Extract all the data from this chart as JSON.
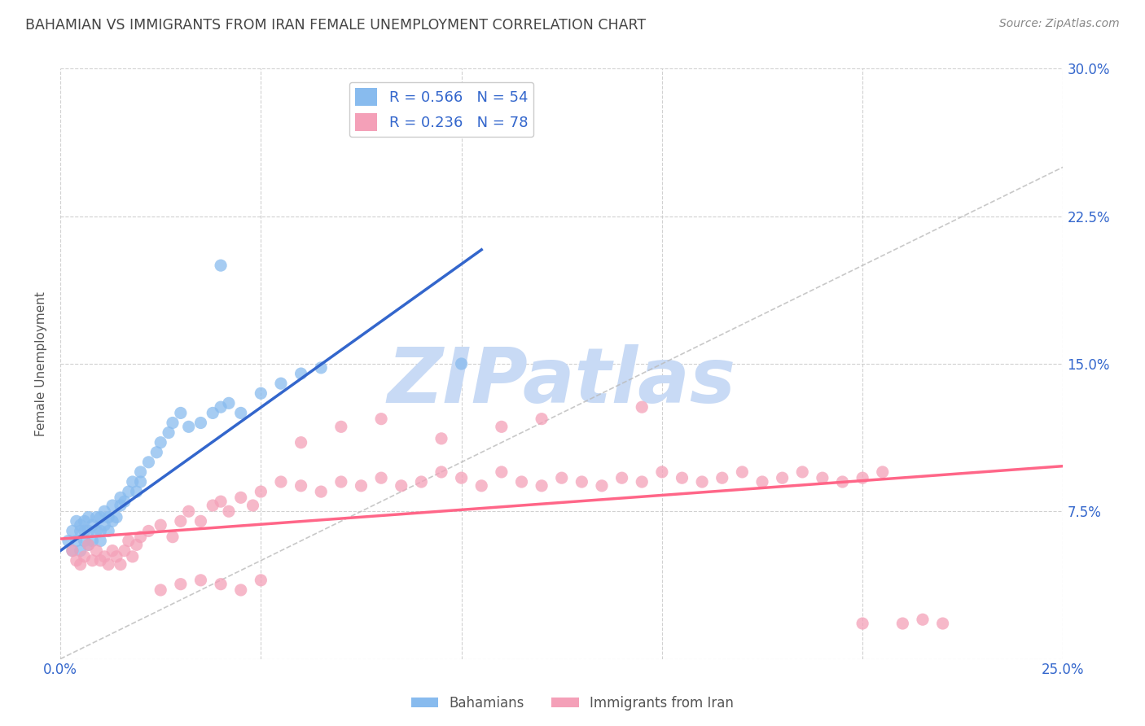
{
  "title": "BAHAMIAN VS IMMIGRANTS FROM IRAN FEMALE UNEMPLOYMENT CORRELATION CHART",
  "source": "Source: ZipAtlas.com",
  "ylabel": "Female Unemployment",
  "xlim": [
    0.0,
    0.25
  ],
  "ylim": [
    0.0,
    0.3
  ],
  "xticks": [
    0.0,
    0.05,
    0.1,
    0.15,
    0.2,
    0.25
  ],
  "yticks": [
    0.0,
    0.075,
    0.15,
    0.225,
    0.3
  ],
  "xticklabels": [
    "0.0%",
    "",
    "",
    "",
    "",
    "25.0%"
  ],
  "yticklabels_right": [
    "",
    "7.5%",
    "15.0%",
    "22.5%",
    "30.0%"
  ],
  "background_color": "#ffffff",
  "grid_color": "#cccccc",
  "title_color": "#444444",
  "watermark_text": "ZIPatlas",
  "watermark_color": "#c8daf5",
  "legend1_R": "0.566",
  "legend1_N": "54",
  "legend2_R": "0.236",
  "legend2_N": "78",
  "legend_color": "#3366cc",
  "blue_scatter_color": "#88bbee",
  "pink_scatter_color": "#f4a0b8",
  "trend_blue": "#3366cc",
  "trend_pink": "#ff6688",
  "trend_gray": "#bbbbbb",
  "bahamians_label": "Bahamians",
  "iran_label": "Immigrants from Iran",
  "blue_trend_x0": 0.0,
  "blue_trend_y0": 0.055,
  "blue_trend_x1": 0.105,
  "blue_trend_y1": 0.208,
  "pink_trend_x0": 0.0,
  "pink_trend_y0": 0.061,
  "pink_trend_x1": 0.25,
  "pink_trend_y1": 0.098,
  "blue_points_x": [
    0.002,
    0.003,
    0.003,
    0.004,
    0.004,
    0.005,
    0.005,
    0.005,
    0.006,
    0.006,
    0.006,
    0.007,
    0.007,
    0.007,
    0.008,
    0.008,
    0.009,
    0.009,
    0.01,
    0.01,
    0.01,
    0.011,
    0.011,
    0.012,
    0.012,
    0.013,
    0.013,
    0.014,
    0.015,
    0.015,
    0.016,
    0.017,
    0.018,
    0.019,
    0.02,
    0.02,
    0.022,
    0.024,
    0.025,
    0.027,
    0.028,
    0.03,
    0.032,
    0.035,
    0.038,
    0.04,
    0.042,
    0.045,
    0.05,
    0.055,
    0.06,
    0.065,
    0.1,
    0.04
  ],
  "blue_points_y": [
    0.06,
    0.055,
    0.065,
    0.06,
    0.07,
    0.055,
    0.065,
    0.068,
    0.06,
    0.065,
    0.07,
    0.058,
    0.065,
    0.072,
    0.06,
    0.068,
    0.065,
    0.072,
    0.06,
    0.065,
    0.072,
    0.068,
    0.075,
    0.065,
    0.072,
    0.07,
    0.078,
    0.072,
    0.078,
    0.082,
    0.08,
    0.085,
    0.09,
    0.085,
    0.09,
    0.095,
    0.1,
    0.105,
    0.11,
    0.115,
    0.12,
    0.125,
    0.118,
    0.12,
    0.125,
    0.128,
    0.13,
    0.125,
    0.135,
    0.14,
    0.145,
    0.148,
    0.15,
    0.2
  ],
  "pink_points_x": [
    0.003,
    0.004,
    0.005,
    0.006,
    0.007,
    0.008,
    0.009,
    0.01,
    0.011,
    0.012,
    0.013,
    0.014,
    0.015,
    0.016,
    0.017,
    0.018,
    0.019,
    0.02,
    0.022,
    0.025,
    0.028,
    0.03,
    0.032,
    0.035,
    0.038,
    0.04,
    0.042,
    0.045,
    0.048,
    0.05,
    0.055,
    0.06,
    0.065,
    0.07,
    0.075,
    0.08,
    0.085,
    0.09,
    0.095,
    0.1,
    0.105,
    0.11,
    0.115,
    0.12,
    0.125,
    0.13,
    0.135,
    0.14,
    0.145,
    0.15,
    0.155,
    0.16,
    0.165,
    0.17,
    0.175,
    0.18,
    0.185,
    0.19,
    0.195,
    0.2,
    0.205,
    0.21,
    0.215,
    0.22,
    0.025,
    0.03,
    0.035,
    0.04,
    0.045,
    0.05,
    0.06,
    0.07,
    0.08,
    0.095,
    0.11,
    0.12,
    0.145,
    0.2
  ],
  "pink_points_y": [
    0.055,
    0.05,
    0.048,
    0.052,
    0.058,
    0.05,
    0.055,
    0.05,
    0.052,
    0.048,
    0.055,
    0.052,
    0.048,
    0.055,
    0.06,
    0.052,
    0.058,
    0.062,
    0.065,
    0.068,
    0.062,
    0.07,
    0.075,
    0.07,
    0.078,
    0.08,
    0.075,
    0.082,
    0.078,
    0.085,
    0.09,
    0.088,
    0.085,
    0.09,
    0.088,
    0.092,
    0.088,
    0.09,
    0.095,
    0.092,
    0.088,
    0.095,
    0.09,
    0.088,
    0.092,
    0.09,
    0.088,
    0.092,
    0.09,
    0.095,
    0.092,
    0.09,
    0.092,
    0.095,
    0.09,
    0.092,
    0.095,
    0.092,
    0.09,
    0.092,
    0.095,
    0.018,
    0.02,
    0.018,
    0.035,
    0.038,
    0.04,
    0.038,
    0.035,
    0.04,
    0.11,
    0.118,
    0.122,
    0.112,
    0.118,
    0.122,
    0.128,
    0.018
  ]
}
